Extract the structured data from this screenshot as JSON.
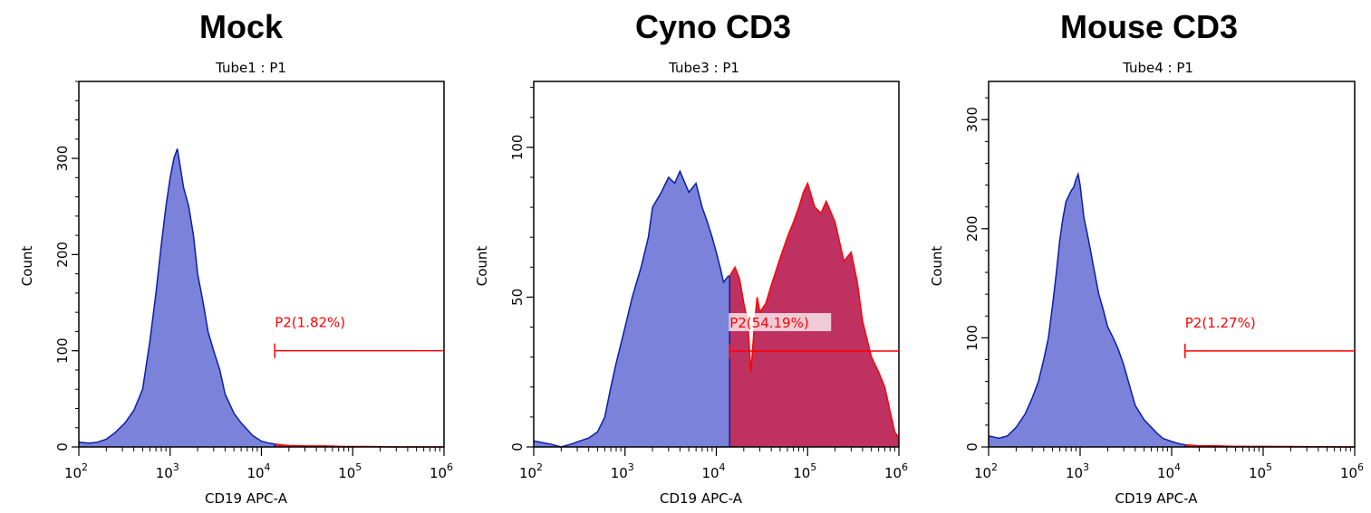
{
  "colors": {
    "fill_negative": "#7a82d9",
    "outline_negative": "#0a1ea8",
    "fill_positive": "#bf3160",
    "outline_positive": "#ff0000",
    "gate": "#ff0000"
  },
  "chart_data": [
    {
      "type": "area",
      "title": "Mock",
      "subtitle": "Tube1 : P1",
      "xlabel": "CD19 APC-A",
      "ylabel": "Count",
      "xscale": "log",
      "xlim": [
        100,
        1000000
      ],
      "ylim": [
        0,
        380
      ],
      "x_ticks": [
        {
          "base": "10",
          "exp": "2"
        },
        {
          "base": "10",
          "exp": "3"
        },
        {
          "base": "10",
          "exp": "4"
        },
        {
          "base": "10",
          "exp": "5"
        },
        {
          "base": "10",
          "exp": "6"
        }
      ],
      "y_ticks": [
        0,
        100,
        200,
        300
      ],
      "gate": {
        "name": "P2(1.82%)",
        "x_start": 14000,
        "x_end": 1000000,
        "y": 100
      },
      "series": {
        "x": [
          100,
          130,
          160,
          200,
          250,
          320,
          400,
          500,
          600,
          700,
          800,
          900,
          1000,
          1100,
          1200,
          1300,
          1400,
          1600,
          1800,
          2000,
          2300,
          2600,
          3000,
          3500,
          4000,
          5000,
          6000,
          7000,
          8000,
          10000,
          12000,
          14000,
          17000,
          20000,
          30000,
          50000,
          80000,
          150000,
          300000,
          1000000
        ],
        "y": [
          5,
          4,
          5,
          8,
          15,
          25,
          38,
          60,
          110,
          160,
          210,
          250,
          280,
          300,
          310,
          290,
          270,
          250,
          220,
          180,
          150,
          120,
          100,
          80,
          55,
          35,
          25,
          18,
          12,
          6,
          4,
          3,
          2,
          1.5,
          1,
          1,
          0.5,
          0.5,
          0,
          0
        ]
      }
    },
    {
      "type": "area",
      "title": "Cyno CD3",
      "subtitle": "Tube3 : P1",
      "xlabel": "CD19 APC-A",
      "ylabel": "Count",
      "xscale": "log",
      "xlim": [
        100,
        1000000
      ],
      "ylim": [
        0,
        122
      ],
      "x_ticks": [
        {
          "base": "10",
          "exp": "2"
        },
        {
          "base": "10",
          "exp": "3"
        },
        {
          "base": "10",
          "exp": "4"
        },
        {
          "base": "10",
          "exp": "5"
        },
        {
          "base": "10",
          "exp": "6"
        }
      ],
      "y_ticks": [
        0,
        50,
        100
      ],
      "gate": {
        "name": "P2(54.19%)",
        "x_start": 14000,
        "x_end": 1000000,
        "y": 32
      },
      "series": {
        "x": [
          100,
          150,
          200,
          260,
          320,
          400,
          500,
          600,
          700,
          800,
          1000,
          1200,
          1500,
          1800,
          2000,
          2500,
          3000,
          3500,
          4000,
          5000,
          6000,
          7000,
          8000,
          9000,
          10000,
          11000,
          12000,
          13500,
          14000,
          16000,
          18000,
          20000,
          22000,
          24000,
          26000,
          28000,
          30000,
          35000,
          40000,
          50000,
          60000,
          70000,
          80000,
          90000,
          100000,
          120000,
          140000,
          160000,
          200000,
          250000,
          300000,
          350000,
          400000,
          500000,
          600000,
          700000,
          800000,
          900000,
          1000000
        ],
        "y": [
          2,
          1,
          0,
          1,
          2,
          3,
          5,
          10,
          20,
          28,
          40,
          50,
          60,
          70,
          80,
          85,
          90,
          88,
          92,
          85,
          88,
          80,
          75,
          70,
          65,
          60,
          55,
          57,
          57,
          60,
          56,
          48,
          42,
          25,
          40,
          50,
          45,
          48,
          54,
          63,
          70,
          75,
          80,
          85,
          88,
          80,
          78,
          82,
          75,
          62,
          65,
          55,
          42,
          30,
          25,
          20,
          12,
          5,
          3
        ]
      }
    },
    {
      "type": "area",
      "title": "Mouse CD3",
      "subtitle": "Tube4 : P1",
      "xlabel": "CD19 APC-A",
      "ylabel": "Count",
      "xscale": "log",
      "xlim": [
        100,
        1000000
      ],
      "ylim": [
        0,
        335
      ],
      "x_ticks": [
        {
          "base": "10",
          "exp": "2"
        },
        {
          "base": "10",
          "exp": "3"
        },
        {
          "base": "10",
          "exp": "4"
        },
        {
          "base": "10",
          "exp": "5"
        },
        {
          "base": "10",
          "exp": "6"
        }
      ],
      "y_ticks": [
        0,
        100,
        200,
        300
      ],
      "gate": {
        "name": "P2(1.27%)",
        "x_start": 14000,
        "x_end": 1000000,
        "y": 88
      },
      "series": {
        "x": [
          100,
          130,
          160,
          200,
          250,
          300,
          350,
          400,
          450,
          500,
          550,
          600,
          650,
          700,
          750,
          800,
          850,
          900,
          950,
          1000,
          1100,
          1200,
          1300,
          1400,
          1600,
          1800,
          2000,
          2300,
          2600,
          3000,
          3500,
          4000,
          5000,
          6000,
          7000,
          8000,
          10000,
          12000,
          14000,
          17000,
          20000,
          30000,
          50000,
          100000,
          1000000
        ],
        "y": [
          10,
          8,
          10,
          18,
          30,
          45,
          60,
          80,
          100,
          130,
          160,
          190,
          210,
          225,
          230,
          235,
          238,
          245,
          250,
          240,
          210,
          195,
          180,
          165,
          140,
          125,
          110,
          100,
          90,
          75,
          55,
          38,
          25,
          18,
          12,
          8,
          5,
          3,
          2,
          1.5,
          1,
          1,
          0.5,
          0.5,
          0
        ]
      }
    }
  ]
}
